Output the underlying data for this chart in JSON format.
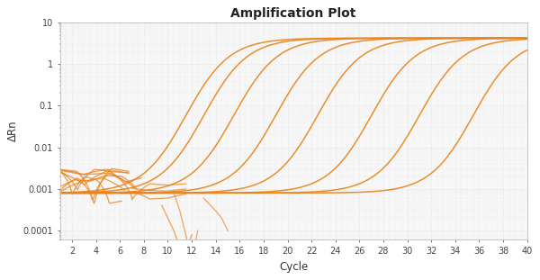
{
  "title": "Amplification Plot",
  "xlabel": "Cycle",
  "ylabel": "ΔRn",
  "line_color": "#E8821A",
  "background_color": "#f7f7f7",
  "grid_color": "#cccccc",
  "xlim": [
    1,
    40
  ],
  "ylim_log": [
    6e-05,
    10
  ],
  "yticks": [
    0.0001,
    0.001,
    0.01,
    0.1,
    1,
    10
  ],
  "ytick_labels": [
    "0.0001",
    "0.001",
    "0.01",
    "0.1",
    "1",
    "10"
  ],
  "xticks": [
    2,
    4,
    6,
    8,
    10,
    12,
    14,
    16,
    18,
    20,
    22,
    24,
    26,
    28,
    30,
    32,
    34,
    36,
    38,
    40
  ],
  "curve_ct": [
    11.5,
    13.0,
    15.5,
    19.0,
    22.5,
    27.0,
    31.0,
    35.5
  ],
  "plateau": 4.2,
  "baseline": 0.0008,
  "alpha": 0.9,
  "linewidth": 1.1
}
